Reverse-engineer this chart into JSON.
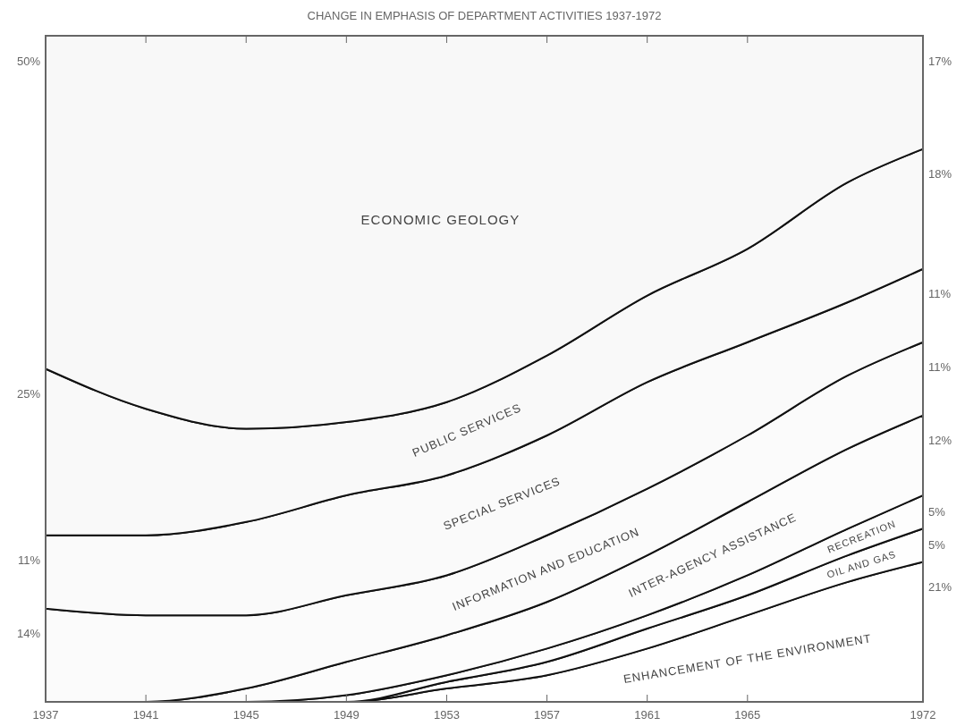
{
  "chart_data": {
    "type": "area",
    "stacked": true,
    "title": "CHANGE IN EMPHASIS OF DEPARTMENT ACTIVITIES 1937-1972",
    "x": [
      1937,
      1941,
      1945,
      1949,
      1953,
      1957,
      1961,
      1965,
      1969,
      1972
    ],
    "xlim": [
      1937,
      1972
    ],
    "xticks": [
      1937,
      1941,
      1945,
      1949,
      1953,
      1957,
      1961,
      1965,
      1972
    ],
    "ylim": [
      0,
      100
    ],
    "series": [
      {
        "name": "ENHANCEMENT OF THE ENVIRONMENT",
        "color": "#ffffff",
        "values": [
          0,
          0,
          0,
          0,
          2,
          4,
          8,
          13,
          18,
          21
        ],
        "value_labels": [
          null,
          null,
          null,
          null,
          null,
          null,
          null,
          null,
          null,
          "21%"
        ]
      },
      {
        "name": "OIL AND GAS",
        "color": "#fefefe",
        "values": [
          0,
          0,
          0,
          0,
          1,
          2,
          3,
          3,
          4,
          5
        ],
        "value_labels": [
          null,
          null,
          null,
          null,
          null,
          null,
          null,
          null,
          null,
          "5%"
        ]
      },
      {
        "name": "RECREATION",
        "color": "#fdfdfd",
        "values": [
          0,
          0,
          0,
          1,
          1,
          2,
          2,
          3,
          4,
          5
        ],
        "value_labels": [
          null,
          null,
          null,
          null,
          null,
          null,
          null,
          null,
          null,
          "5%"
        ]
      },
      {
        "name": "INTER-AGENCY ASSISTANCE",
        "color": "#fcfcfc",
        "values": [
          0,
          0,
          2,
          5,
          6,
          7,
          9,
          11,
          12,
          12
        ],
        "value_labels": [
          null,
          null,
          null,
          null,
          null,
          null,
          null,
          null,
          null,
          "12%"
        ]
      },
      {
        "name": "INFORMATION AND EDUCATION",
        "color": "#fbfbfb",
        "values": [
          14,
          13,
          11,
          10,
          9,
          10,
          10,
          10,
          11,
          11
        ],
        "value_labels": [
          "14%",
          null,
          null,
          null,
          null,
          null,
          null,
          null,
          null,
          "11%"
        ]
      },
      {
        "name": "SPECIAL SERVICES",
        "color": "#fafafa",
        "values": [
          11,
          12,
          14,
          15,
          15,
          15,
          16,
          14,
          11,
          11
        ],
        "value_labels": [
          "11%",
          null,
          null,
          null,
          null,
          null,
          null,
          null,
          null,
          "11%"
        ]
      },
      {
        "name": "PUBLIC SERVICES",
        "color": "#f9f9f9",
        "values": [
          25,
          19,
          14,
          11,
          11,
          12,
          13,
          14,
          18,
          18
        ],
        "value_labels": [
          "25%",
          null,
          null,
          null,
          null,
          null,
          null,
          null,
          null,
          "18%"
        ]
      },
      {
        "name": "ECONOMIC GEOLOGY",
        "color": "#f8f8f8",
        "values": [
          50,
          56,
          59,
          58,
          55,
          48,
          39,
          32,
          22,
          17
        ],
        "value_labels": [
          "50%",
          null,
          null,
          null,
          null,
          null,
          null,
          null,
          null,
          "17%"
        ]
      }
    ]
  }
}
